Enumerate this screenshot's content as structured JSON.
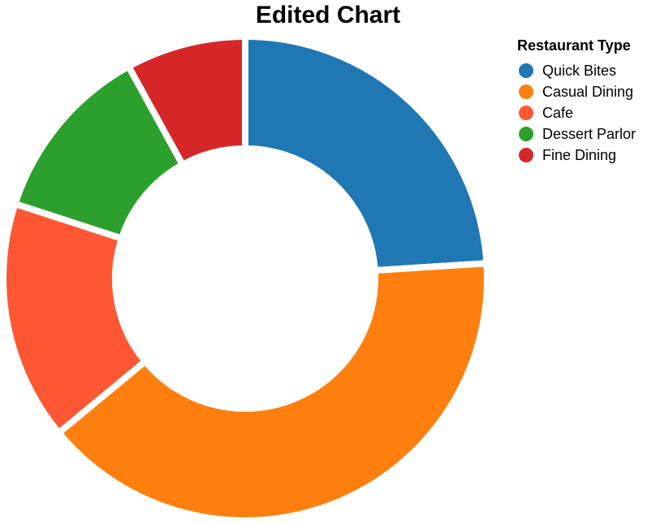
{
  "chart_data": {
    "type": "pie",
    "title": "Edited Chart",
    "donut": true,
    "legend_title": "Restaurant Type",
    "legend_position": "top-right",
    "categories": [
      "Quick Bites",
      "Casual Dining",
      "Cafe",
      "Dessert Parlor",
      "Fine Dining"
    ],
    "values": [
      24,
      40,
      16,
      12,
      8
    ],
    "colors": [
      "#1f77b4",
      "#ff7f0e",
      "#ff5733",
      "#2ca02c",
      "#d62728"
    ]
  }
}
